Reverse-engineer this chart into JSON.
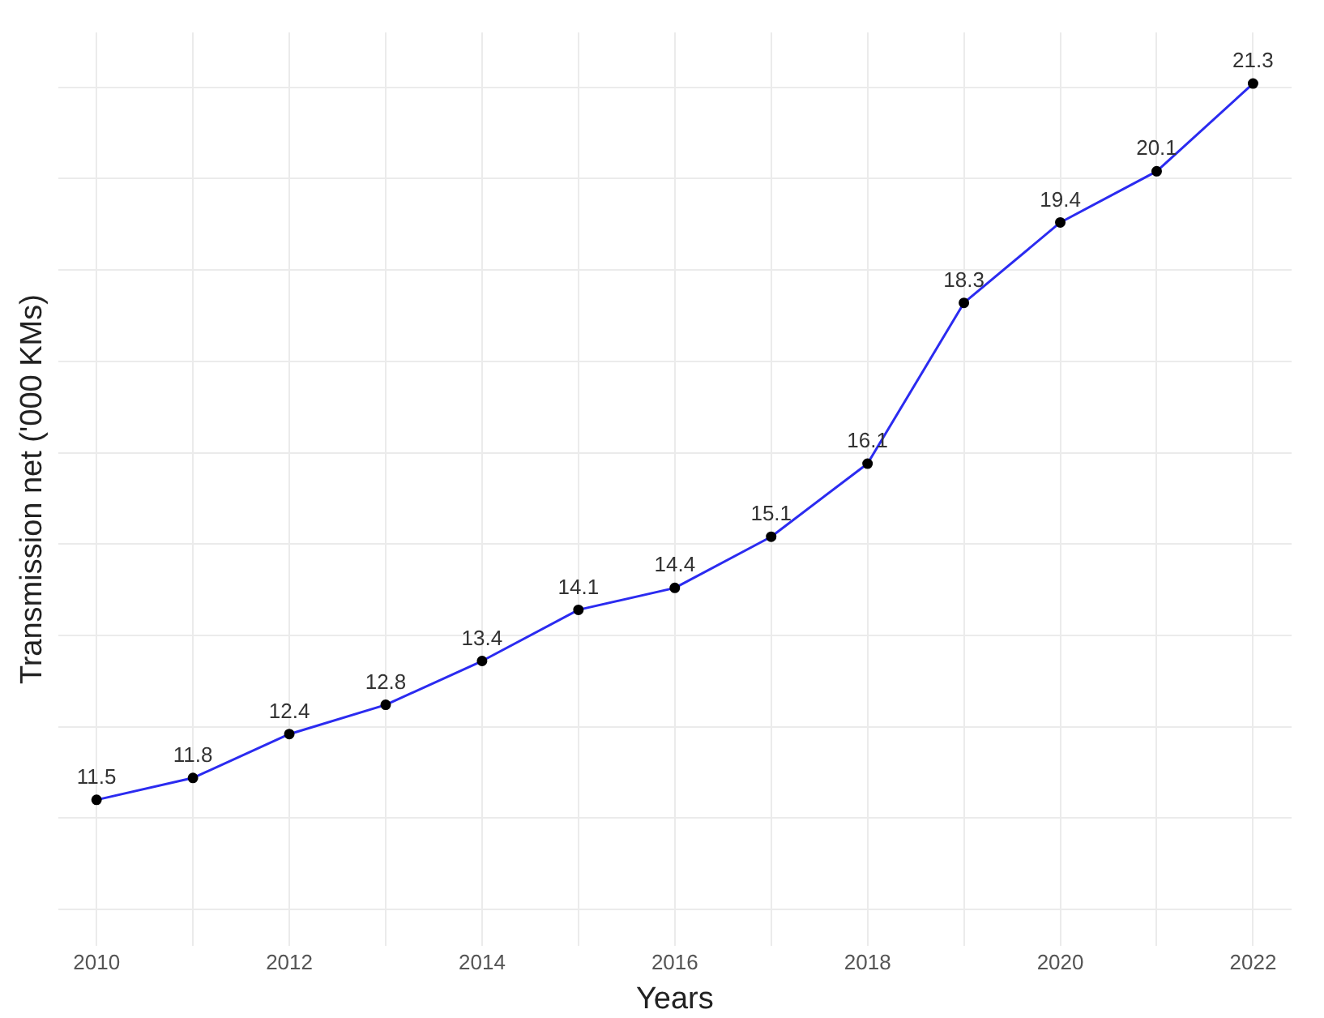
{
  "chart_data": {
    "type": "line",
    "xlabel": "Years",
    "ylabel": "Transmission net ('000 KMs)",
    "x": [
      2010,
      2011,
      2012,
      2013,
      2014,
      2015,
      2016,
      2017,
      2018,
      2019,
      2020,
      2021,
      2022
    ],
    "series": [
      {
        "color": "#2b2bf0",
        "values": [
          11.5,
          11.8,
          12.4,
          12.8,
          13.4,
          14.1,
          14.4,
          15.1,
          16.1,
          18.3,
          19.4,
          20.1,
          21.3
        ]
      }
    ],
    "xlim": [
      2009.6,
      2022.4
    ],
    "xticks": [
      2010,
      {
        "value": 2011,
        "label": null
      },
      2012,
      {
        "value": 2013,
        "label": null
      },
      2014,
      {
        "value": 2015,
        "label": null
      },
      2016,
      {
        "value": 2017,
        "label": null
      },
      2018,
      {
        "value": 2019,
        "label": null
      },
      2020,
      {
        "value": 2021,
        "label": null
      },
      2022
    ],
    "ylim": [
      9.5,
      22
    ],
    "yticks": [
      {
        "value": 10,
        "label": null
      },
      {
        "value": 11.25,
        "label": null
      },
      {
        "value": 12.5,
        "label": null
      },
      {
        "value": 13.75,
        "label": null
      },
      {
        "value": 15,
        "label": null
      },
      {
        "value": 16.25,
        "label": null
      },
      {
        "value": 17.5,
        "label": null
      },
      {
        "value": 18.75,
        "label": null
      },
      {
        "value": 20,
        "label": null
      },
      {
        "value": 21.25,
        "label": null
      }
    ],
    "tick_labels": "x",
    "grid": true,
    "legend": false,
    "marker": "circle",
    "line_style": "solid",
    "data_labels": true
  }
}
